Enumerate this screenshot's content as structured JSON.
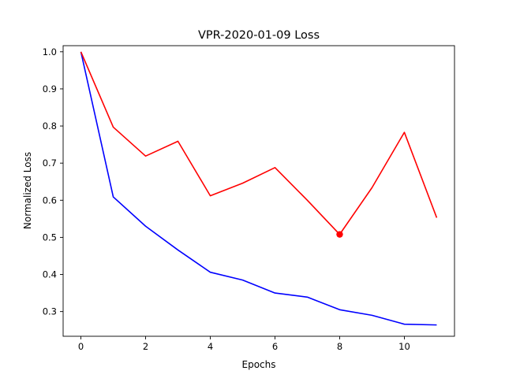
{
  "chart_data": {
    "type": "line",
    "title": "VPR-2020-01-09 Loss",
    "xlabel": "Epochs",
    "ylabel": "Normalized Loss",
    "xlim": [
      -0.55,
      11.55
    ],
    "ylim": [
      0.2335,
      1.0165
    ],
    "x_ticks": [
      0,
      2,
      4,
      6,
      8,
      10
    ],
    "y_ticks": [
      0.3,
      0.4,
      0.5,
      0.6,
      0.7,
      0.8,
      0.9,
      1.0
    ],
    "y_tick_labels": [
      "0.3",
      "0.4",
      "0.5",
      "0.6",
      "0.7",
      "0.8",
      "0.9",
      "1.0"
    ],
    "grid": false,
    "x": [
      0,
      1,
      2,
      3,
      4,
      5,
      6,
      7,
      8,
      9,
      10,
      11
    ],
    "series": [
      {
        "color": "#0000ff",
        "values": [
          1.0,
          0.609,
          0.53,
          0.466,
          0.406,
          0.385,
          0.35,
          0.339,
          0.305,
          0.29,
          0.266,
          0.264
        ]
      },
      {
        "color": "#ff0000",
        "values": [
          1.0,
          0.797,
          0.719,
          0.759,
          0.612,
          0.646,
          0.688,
          0.6,
          0.508,
          0.634,
          0.783,
          0.553
        ]
      }
    ],
    "markers": [
      {
        "series": 1,
        "x": 8,
        "y": 0.508,
        "color": "#ff0000"
      }
    ]
  }
}
